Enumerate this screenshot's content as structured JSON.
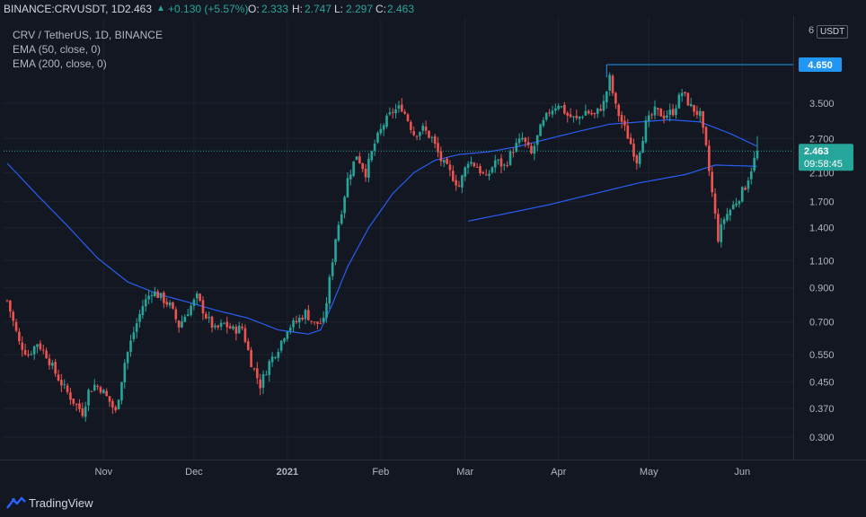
{
  "header": {
    "symbol": "BINANCE:CRVUSDT, 1D",
    "last": "2.463",
    "change_arrow": "▲",
    "change": "+0.130 (+5.57%)",
    "open_label": "O:",
    "open": "2.333",
    "high_label": "H:",
    "high": "2.747",
    "low_label": "L:",
    "low": "2.297",
    "close_label": "C:",
    "close": "2.463"
  },
  "legend": {
    "title": "CRV / TetherUS, 1D, BINANCE",
    "ema50": "EMA (50, close, 0)",
    "ema200": "EMA (200, close, 0)"
  },
  "footer": {
    "brand": "TradingView"
  },
  "price_axis": {
    "currency": "USDT",
    "top_label": "6"
  },
  "colors": {
    "up": "#26a69a",
    "down": "#ef5350",
    "ema": "#2962ff",
    "badge_blue": "#2196f3",
    "badge_green": "#26a69a",
    "background": "#131722",
    "grid": "#1e222d"
  },
  "chart_data": {
    "type": "candlestick",
    "title": "CRV / TetherUS, 1D, BINANCE",
    "y_scale": "log",
    "ylim": [
      0.25,
      6
    ],
    "y_ticks": [
      0.3,
      0.37,
      0.45,
      0.55,
      0.7,
      0.9,
      1.1,
      1.4,
      1.7,
      2.1,
      2.7,
      3.5
    ],
    "y_tick_labels": [
      "0.300",
      "0.370",
      "0.450",
      "0.550",
      "0.700",
      "0.900",
      "1.100",
      "1.400",
      "1.700",
      "2.100",
      "2.700",
      "3.500"
    ],
    "x_tick_labels": [
      "Nov",
      "Dec",
      "2021",
      "Feb",
      "Mar",
      "Apr",
      "May",
      "Jun"
    ],
    "x_tick_days": [
      32,
      62,
      93,
      124,
      152,
      183,
      213,
      244
    ],
    "last_price": 2.463,
    "countdown": "09:58:45",
    "horizontal_line": {
      "value": 4.65,
      "label": "4.650",
      "start_day": 199
    },
    "grid": true,
    "candle_count": 250,
    "anchors": [
      [
        0,
        0.82
      ],
      [
        4,
        0.6
      ],
      [
        7,
        0.55
      ],
      [
        10,
        0.6
      ],
      [
        13,
        0.55
      ],
      [
        16,
        0.48
      ],
      [
        19,
        0.43
      ],
      [
        22,
        0.39
      ],
      [
        25,
        0.36
      ],
      [
        27,
        0.42
      ],
      [
        29,
        0.44
      ],
      [
        31,
        0.43
      ],
      [
        34,
        0.39
      ],
      [
        36,
        0.36
      ],
      [
        39,
        0.52
      ],
      [
        42,
        0.65
      ],
      [
        45,
        0.79
      ],
      [
        48,
        0.88
      ],
      [
        51,
        0.84
      ],
      [
        54,
        0.79
      ],
      [
        57,
        0.68
      ],
      [
        60,
        0.76
      ],
      [
        63,
        0.84
      ],
      [
        66,
        0.73
      ],
      [
        69,
        0.66
      ],
      [
        72,
        0.69
      ],
      [
        75,
        0.66
      ],
      [
        78,
        0.67
      ],
      [
        81,
        0.52
      ],
      [
        84,
        0.44
      ],
      [
        87,
        0.52
      ],
      [
        90,
        0.58
      ],
      [
        93,
        0.67
      ],
      [
        96,
        0.7
      ],
      [
        99,
        0.75
      ],
      [
        102,
        0.69
      ],
      [
        105,
        0.7
      ],
      [
        107,
        0.95
      ],
      [
        109,
        1.3
      ],
      [
        111,
        1.6
      ],
      [
        113,
        2.0
      ],
      [
        116,
        2.4
      ],
      [
        119,
        2.1
      ],
      [
        122,
        2.6
      ],
      [
        125,
        3.0
      ],
      [
        128,
        3.3
      ],
      [
        131,
        3.4
      ],
      [
        133,
        3.1
      ],
      [
        135,
        2.8
      ],
      [
        138,
        2.9
      ],
      [
        141,
        2.7
      ],
      [
        144,
        2.3
      ],
      [
        147,
        2.1
      ],
      [
        150,
        1.9
      ],
      [
        153,
        2.3
      ],
      [
        156,
        2.2
      ],
      [
        159,
        2.0
      ],
      [
        162,
        2.3
      ],
      [
        165,
        2.2
      ],
      [
        168,
        2.5
      ],
      [
        171,
        2.7
      ],
      [
        174,
        2.4
      ],
      [
        177,
        2.9
      ],
      [
        180,
        3.3
      ],
      [
        183,
        3.5
      ],
      [
        186,
        3.2
      ],
      [
        189,
        3.1
      ],
      [
        192,
        3.3
      ],
      [
        195,
        3.2
      ],
      [
        198,
        3.5
      ],
      [
        200,
        4.2
      ],
      [
        202,
        3.4
      ],
      [
        205,
        2.9
      ],
      [
        207,
        2.6
      ],
      [
        209,
        2.3
      ],
      [
        212,
        3.0
      ],
      [
        215,
        3.3
      ],
      [
        218,
        3.2
      ],
      [
        221,
        3.3
      ],
      [
        224,
        3.8
      ],
      [
        227,
        3.4
      ],
      [
        230,
        3.2
      ],
      [
        232,
        2.5
      ],
      [
        234,
        1.8
      ],
      [
        236,
        1.3
      ],
      [
        238,
        1.5
      ],
      [
        240,
        1.6
      ],
      [
        242,
        1.7
      ],
      [
        245,
        1.9
      ],
      [
        249,
        2.463
      ]
    ],
    "ema50": [
      [
        0,
        2.25
      ],
      [
        10,
        1.78
      ],
      [
        20,
        1.42
      ],
      [
        30,
        1.12
      ],
      [
        40,
        0.94
      ],
      [
        50,
        0.86
      ],
      [
        60,
        0.81
      ],
      [
        70,
        0.76
      ],
      [
        80,
        0.72
      ],
      [
        90,
        0.66
      ],
      [
        100,
        0.64
      ],
      [
        104,
        0.66
      ],
      [
        108,
        0.8
      ],
      [
        113,
        1.05
      ],
      [
        120,
        1.4
      ],
      [
        128,
        1.8
      ],
      [
        135,
        2.1
      ],
      [
        142,
        2.3
      ],
      [
        150,
        2.4
      ],
      [
        160,
        2.45
      ],
      [
        170,
        2.55
      ],
      [
        180,
        2.7
      ],
      [
        190,
        2.85
      ],
      [
        200,
        3.0
      ],
      [
        210,
        3.05
      ],
      [
        220,
        3.1
      ],
      [
        230,
        3.05
      ],
      [
        240,
        2.8
      ],
      [
        249,
        2.55
      ]
    ],
    "ema200": [
      [
        153,
        1.47
      ],
      [
        165,
        1.55
      ],
      [
        180,
        1.66
      ],
      [
        195,
        1.8
      ],
      [
        210,
        1.95
      ],
      [
        225,
        2.07
      ],
      [
        235,
        2.22
      ],
      [
        249,
        2.2
      ]
    ]
  }
}
